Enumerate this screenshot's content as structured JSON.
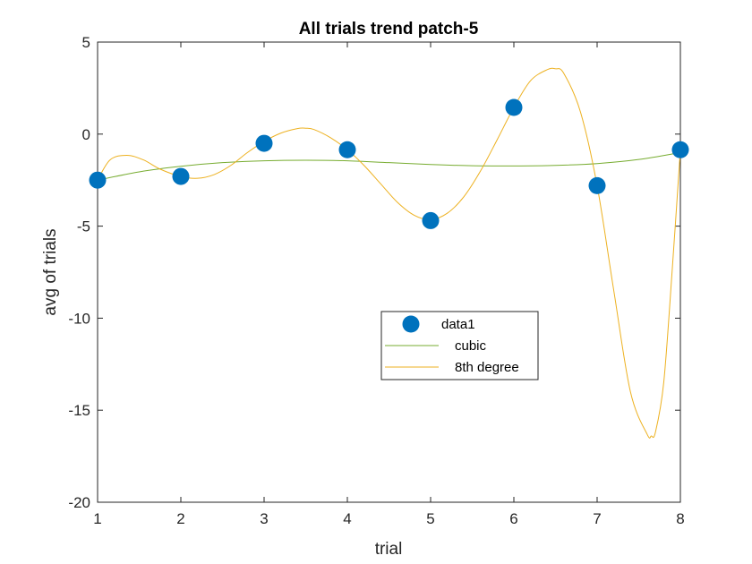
{
  "chart_data": {
    "type": "line",
    "title": "All trials trend patch-5",
    "xlabel": "trial",
    "ylabel": "avg of trials",
    "xlim": [
      1,
      8
    ],
    "ylim": [
      -20,
      5
    ],
    "xticks": [
      1,
      2,
      3,
      4,
      5,
      6,
      7,
      8
    ],
    "yticks": [
      5,
      0,
      -5,
      -10,
      -15,
      -20
    ],
    "grid": false,
    "legend_position": "center",
    "series": [
      {
        "name": "data1",
        "style": "markers",
        "color": "#0072BD",
        "x": [
          1,
          2,
          3,
          4,
          5,
          6,
          7,
          8
        ],
        "y": [
          -2.5,
          -2.3,
          -0.5,
          -0.85,
          -4.7,
          1.45,
          -2.8,
          -0.85
        ]
      },
      {
        "name": "cubic",
        "style": "line",
        "color": "#77AC30",
        "x": [
          1,
          1.5,
          2,
          2.5,
          3,
          3.5,
          4,
          4.5,
          5,
          5.5,
          6,
          6.5,
          7,
          7.5,
          8
        ],
        "y": [
          -2.5,
          -2.05,
          -1.75,
          -1.55,
          -1.45,
          -1.42,
          -1.45,
          -1.55,
          -1.65,
          -1.72,
          -1.73,
          -1.7,
          -1.6,
          -1.38,
          -1.0
        ]
      },
      {
        "name": "8th degree",
        "style": "line",
        "color": "#EDB120",
        "x": [
          1,
          1.15,
          1.35,
          1.55,
          1.75,
          2,
          2.2,
          2.4,
          2.6,
          2.8,
          3,
          3.2,
          3.4,
          3.5,
          3.6,
          3.8,
          4,
          4.2,
          4.4,
          4.6,
          4.8,
          5,
          5.2,
          5.4,
          5.6,
          5.8,
          6,
          6.2,
          6.4,
          6.5,
          6.6,
          6.8,
          7,
          7.2,
          7.4,
          7.6,
          7.65,
          7.7,
          7.8,
          7.9,
          8
        ],
        "y": [
          -2.5,
          -1.4,
          -1.15,
          -1.4,
          -1.9,
          -2.3,
          -2.4,
          -2.2,
          -1.7,
          -1.0,
          -0.4,
          0.05,
          0.3,
          0.32,
          0.25,
          -0.2,
          -0.85,
          -1.7,
          -2.7,
          -3.7,
          -4.4,
          -4.65,
          -4.3,
          -3.4,
          -2.0,
          -0.3,
          1.45,
          2.9,
          3.5,
          3.55,
          3.3,
          1.2,
          -2.8,
          -8.5,
          -14.0,
          -16.3,
          -16.4,
          -16.2,
          -13.5,
          -7.5,
          -0.85
        ]
      }
    ]
  }
}
